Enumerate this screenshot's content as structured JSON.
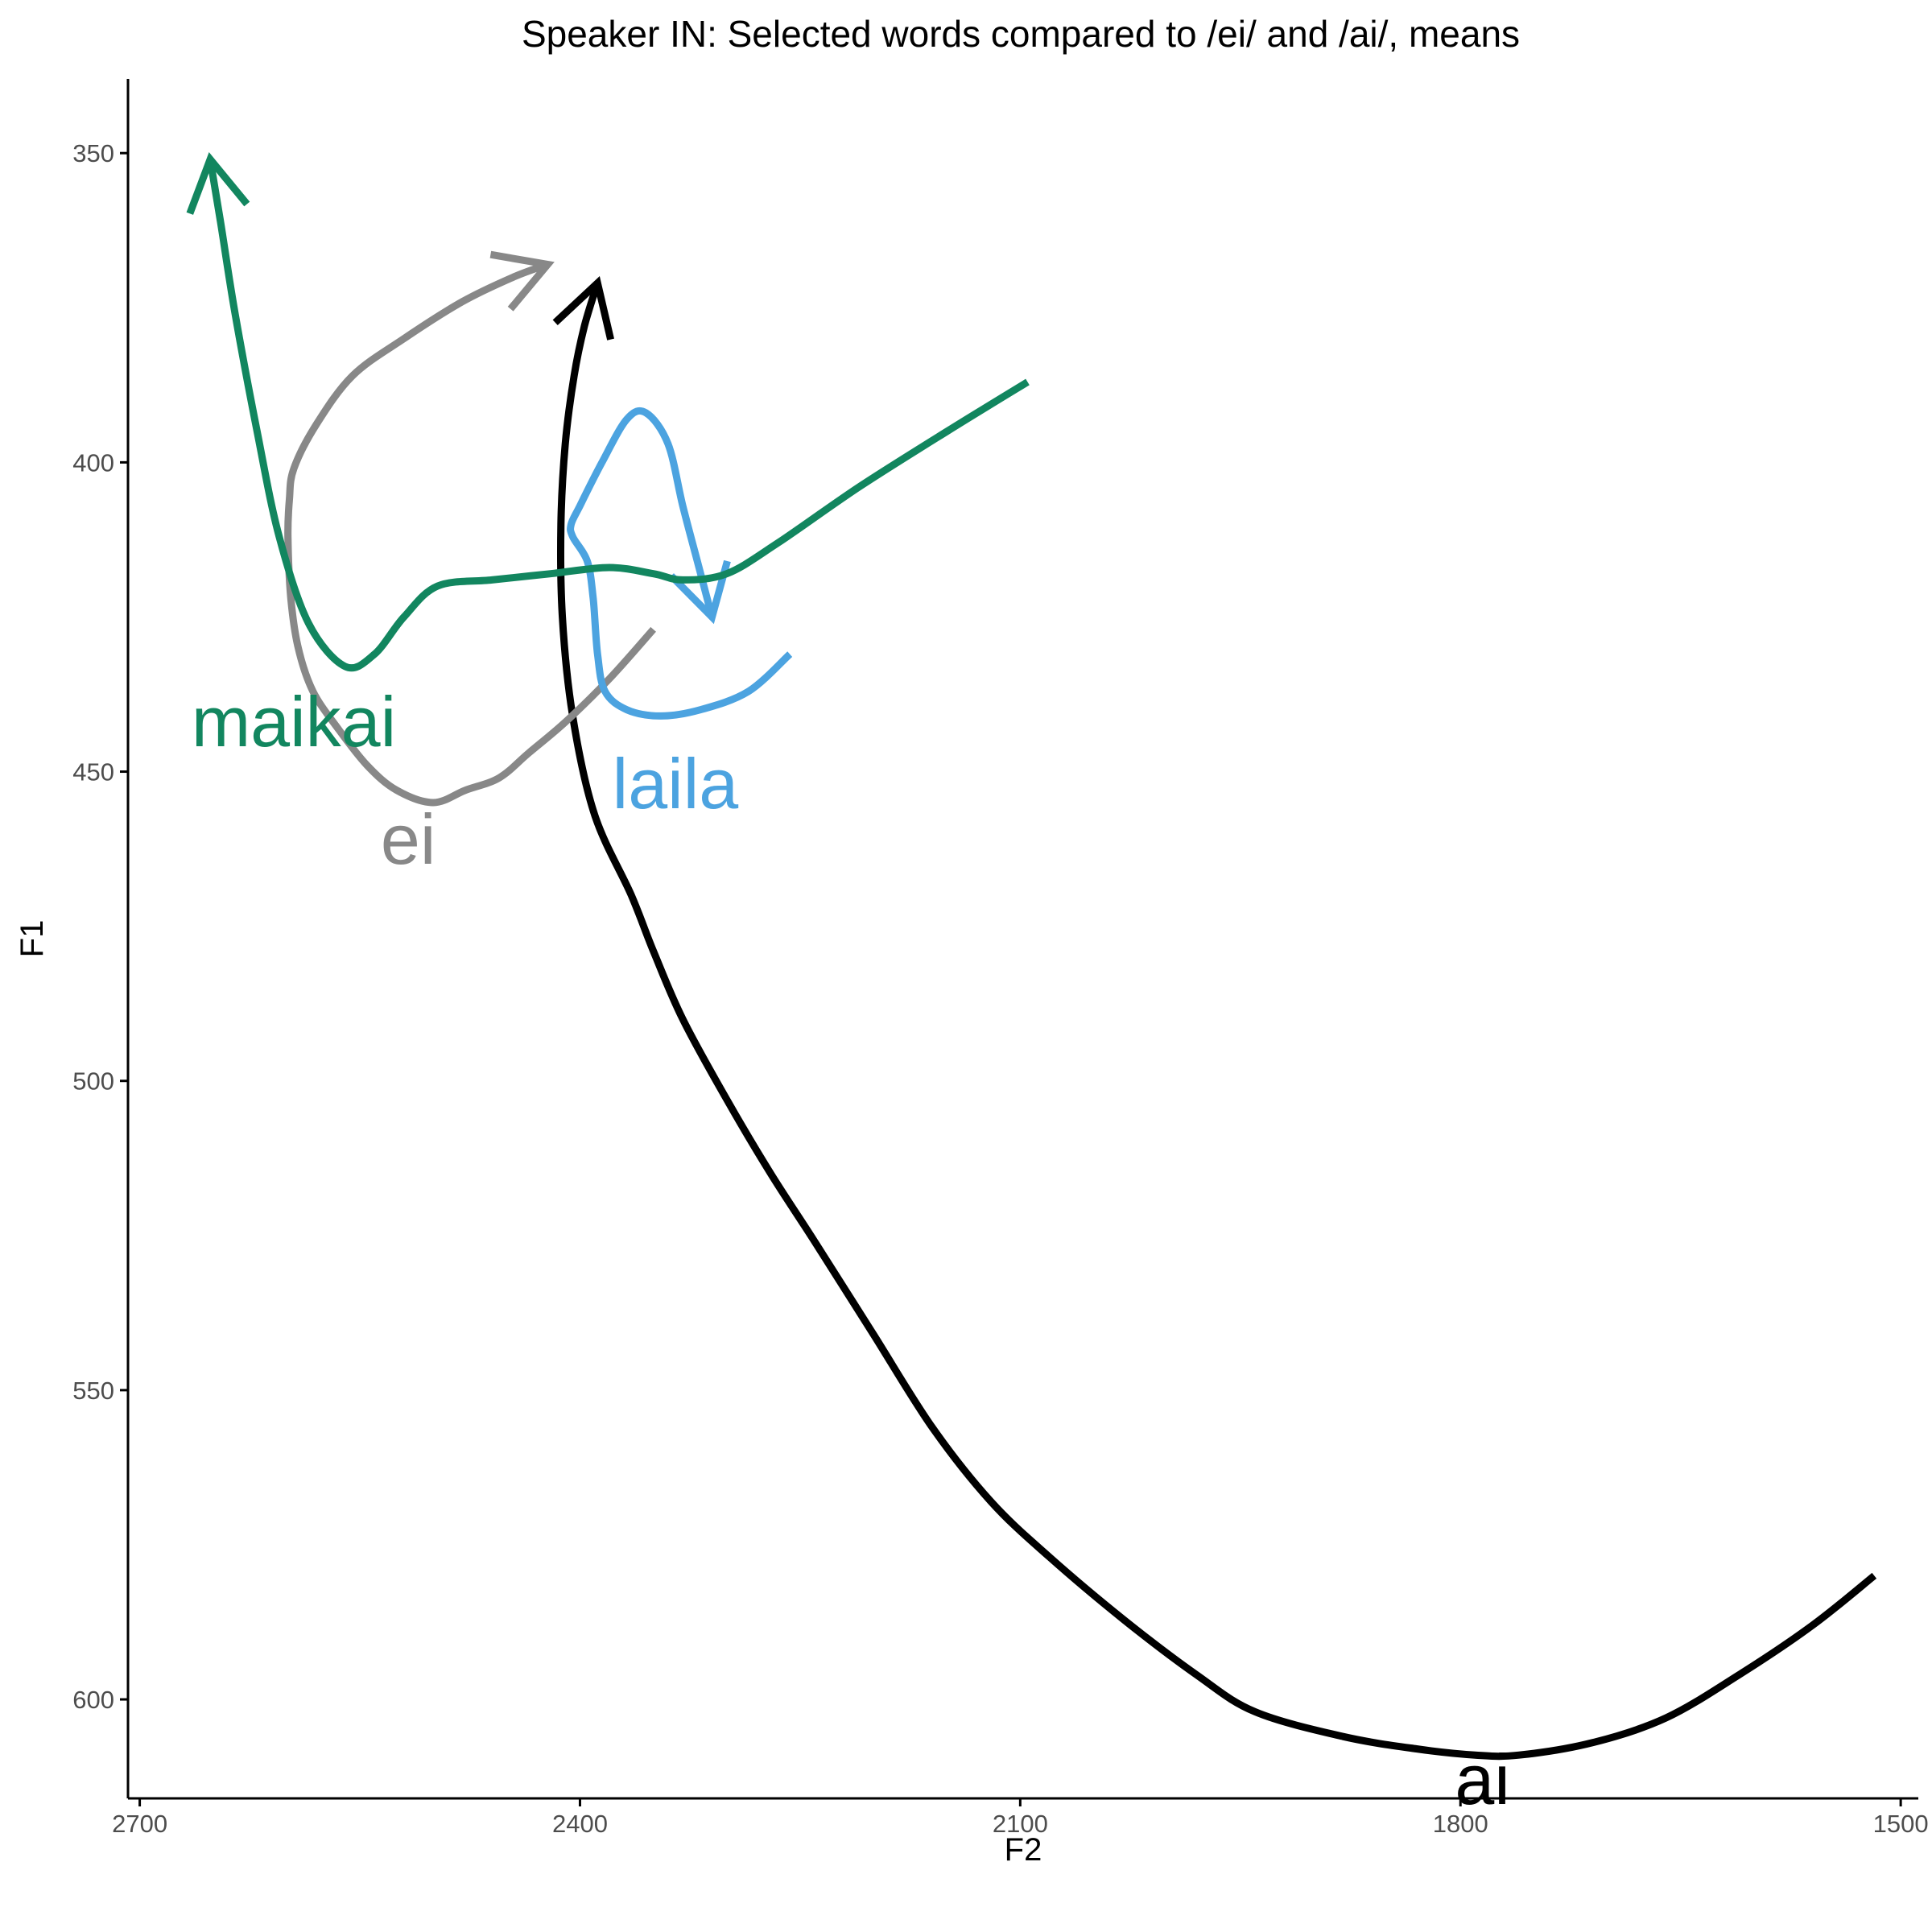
{
  "chart_data": {
    "type": "line",
    "title": "Speaker IN: Selected words compared to /ei/ and /ai/, means",
    "xlabel": "F2",
    "ylabel": "F1",
    "xlim": [
      2708,
      1488
    ],
    "ylim": [
      338,
      616
    ],
    "x_reversed": true,
    "y_reversed": true,
    "x_ticks": [
      2700,
      2400,
      2100,
      1800,
      1500
    ],
    "y_ticks": [
      350,
      400,
      450,
      500,
      550,
      600
    ],
    "grid": false,
    "legend": "none",
    "series": [
      {
        "name": "ai",
        "color": "#000000",
        "label_point": [
          1785,
          613
        ],
        "points": [
          [
            1518,
            580
          ],
          [
            1560,
            588
          ],
          [
            1610,
            596
          ],
          [
            1660,
            603
          ],
          [
            1710,
            607
          ],
          [
            1760,
            609
          ],
          [
            1790,
            609
          ],
          [
            1830,
            608
          ],
          [
            1880,
            606
          ],
          [
            1940,
            602
          ],
          [
            1980,
            596
          ],
          [
            2030,
            587
          ],
          [
            2080,
            577
          ],
          [
            2120,
            568
          ],
          [
            2160,
            556
          ],
          [
            2200,
            541
          ],
          [
            2240,
            526
          ],
          [
            2270,
            515
          ],
          [
            2300,
            503
          ],
          [
            2330,
            490
          ],
          [
            2350,
            479
          ],
          [
            2365,
            470
          ],
          [
            2390,
            457
          ],
          [
            2405,
            441
          ],
          [
            2412,
            425
          ],
          [
            2413,
            410
          ],
          [
            2410,
            397
          ],
          [
            2404,
            386
          ],
          [
            2397,
            378
          ],
          [
            2388,
            371
          ]
        ],
        "arrow_tip": [
          2388,
          371
        ]
      },
      {
        "name": "ei",
        "color": "#888888",
        "label_point": [
          2517,
          461
        ],
        "points": [
          [
            2350,
            427
          ],
          [
            2380,
            435
          ],
          [
            2410,
            442
          ],
          [
            2435,
            447
          ],
          [
            2455,
            451
          ],
          [
            2478,
            453
          ],
          [
            2500,
            455
          ],
          [
            2525,
            453
          ],
          [
            2545,
            449
          ],
          [
            2565,
            443
          ],
          [
            2582,
            437
          ],
          [
            2592,
            430
          ],
          [
            2597,
            422
          ],
          [
            2599,
            412
          ],
          [
            2598,
            406
          ],
          [
            2595,
            401
          ],
          [
            2580,
            394
          ],
          [
            2555,
            386
          ],
          [
            2520,
            380
          ],
          [
            2480,
            374
          ],
          [
            2445,
            370
          ],
          [
            2422,
            368
          ]
        ],
        "arrow_tip": [
          2422,
          368
        ]
      },
      {
        "name": "laila",
        "color": "#4ca3e0",
        "label_point": [
          2335,
          452
        ],
        "points": [
          [
            2257,
            431
          ],
          [
            2285,
            437
          ],
          [
            2318,
            440
          ],
          [
            2345,
            441
          ],
          [
            2368,
            440
          ],
          [
            2383,
            437
          ],
          [
            2388,
            431
          ],
          [
            2391,
            422
          ],
          [
            2395,
            416
          ],
          [
            2405,
            412
          ],
          [
            2406,
            410
          ],
          [
            2400,
            407
          ],
          [
            2385,
            400
          ],
          [
            2368,
            393
          ],
          [
            2355,
            392
          ],
          [
            2340,
            397
          ],
          [
            2330,
            407
          ],
          [
            2320,
            416
          ],
          [
            2310,
            425
          ]
        ],
        "arrow_tip": [
          2310,
          425
        ]
      },
      {
        "name": "maikai",
        "color": "#12865f",
        "label_point": [
          2595,
          442
        ],
        "points": [
          [
            2095,
            387
          ],
          [
            2150,
            395
          ],
          [
            2210,
            404
          ],
          [
            2265,
            413
          ],
          [
            2300,
            418
          ],
          [
            2330,
            419
          ],
          [
            2350,
            418
          ],
          [
            2380,
            417
          ],
          [
            2420,
            418
          ],
          [
            2460,
            419
          ],
          [
            2497,
            420
          ],
          [
            2520,
            425
          ],
          [
            2540,
            431
          ],
          [
            2560,
            433
          ],
          [
            2585,
            426
          ],
          [
            2605,
            412
          ],
          [
            2620,
            395
          ],
          [
            2635,
            376
          ],
          [
            2645,
            361
          ],
          [
            2652,
            351
          ]
        ],
        "arrow_tip": [
          2652,
          351
        ]
      }
    ]
  }
}
